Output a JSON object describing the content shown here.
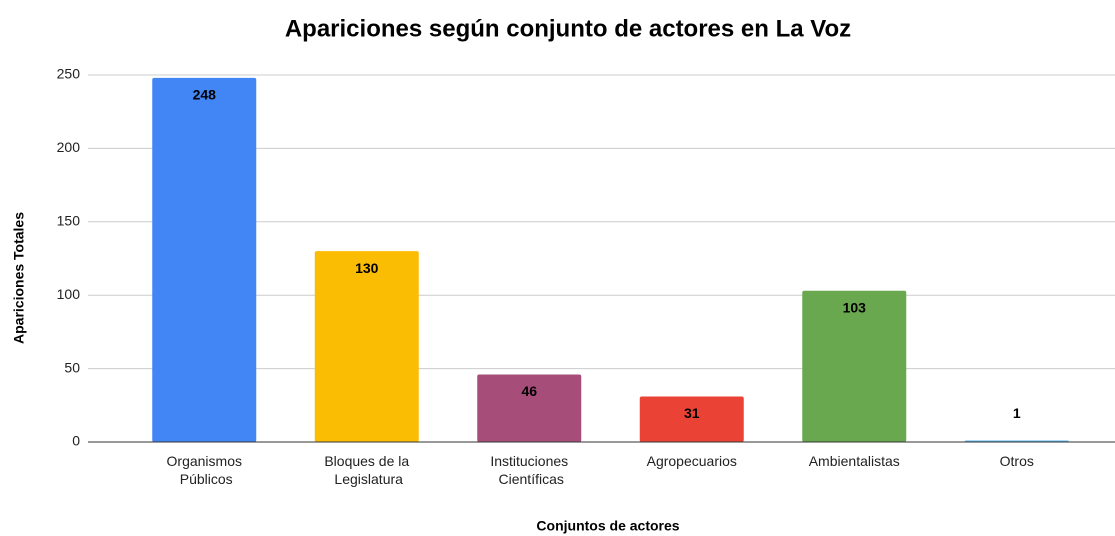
{
  "chart_data": {
    "type": "bar",
    "title": "Apariciones según conjunto de actores en La Voz",
    "x_label": "Conjuntos de actores",
    "y_label": "Apariciones Totales",
    "categories": [
      "Organismos Públicos",
      "Bloques de la Legislatura",
      "Instituciones Científicas",
      "Agropecuarios",
      "Ambientalistas",
      "Otros"
    ],
    "values": [
      248,
      130,
      46,
      31,
      103,
      1
    ],
    "colors": [
      "#4285f4",
      "#fbbc04",
      "#a64d79",
      "#ea4335",
      "#6aa84f",
      "#5ab4ee"
    ],
    "ylim": [
      0,
      250
    ],
    "yticks": [
      0,
      50,
      100,
      150,
      200,
      250
    ],
    "grid": true
  }
}
